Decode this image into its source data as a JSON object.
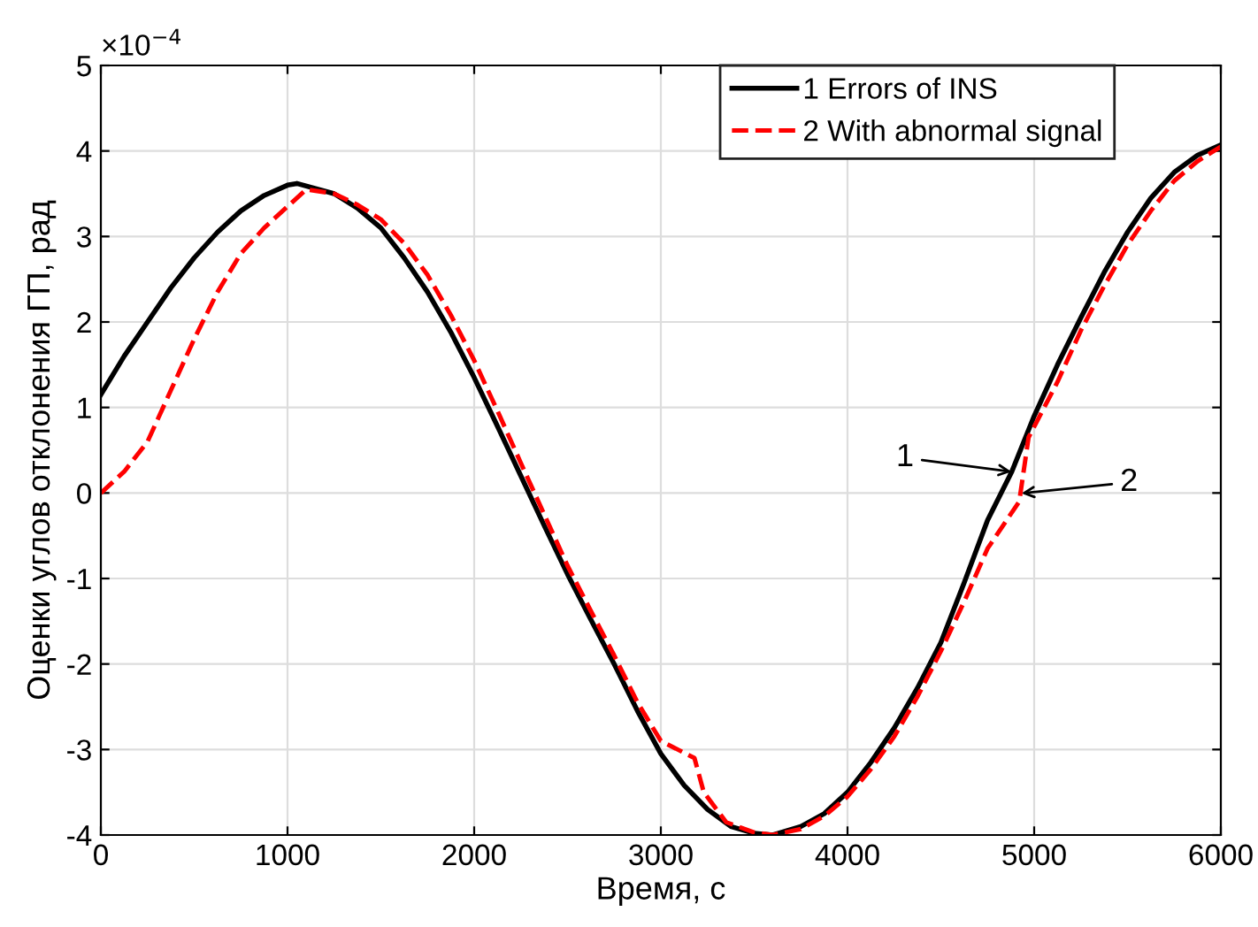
{
  "chart_data": {
    "type": "line",
    "xlabel": "Время, с",
    "ylabel": "Оценки углов отклонения ГП, рад",
    "xlim": [
      0,
      6000
    ],
    "xticks": [
      0,
      1000,
      2000,
      3000,
      4000,
      5000,
      6000
    ],
    "ylim": [
      -4,
      5
    ],
    "yticks": [
      -4,
      -3,
      -2,
      -1,
      0,
      1,
      2,
      3,
      4,
      5
    ],
    "grid": true,
    "legend": "top right",
    "marker": "none",
    "series": [
      {
        "name": "1 Errors of INS",
        "color": "#000000",
        "line_style": "solid",
        "x": [
          0,
          125,
          250,
          375,
          500,
          625,
          750,
          875,
          1000,
          1050,
          1250,
          1375,
          1500,
          1625,
          1750,
          1875,
          2000,
          2125,
          2250,
          2375,
          2500,
          2625,
          2750,
          2875,
          3000,
          3125,
          3250,
          3375,
          3500,
          3600,
          3750,
          3875,
          4000,
          4125,
          4250,
          4375,
          4500,
          4625,
          4750,
          4880,
          5000,
          5125,
          5250,
          5375,
          5500,
          5625,
          5750,
          5875,
          6000
        ],
        "values": [
          1.15,
          1.6,
          2.0,
          2.4,
          2.75,
          3.05,
          3.3,
          3.48,
          3.6,
          3.62,
          3.5,
          3.33,
          3.1,
          2.75,
          2.35,
          1.88,
          1.35,
          0.78,
          0.2,
          -0.38,
          -0.95,
          -1.48,
          -2.0,
          -2.55,
          -3.05,
          -3.42,
          -3.7,
          -3.9,
          -3.98,
          -4.0,
          -3.9,
          -3.75,
          -3.5,
          -3.15,
          -2.75,
          -2.28,
          -1.75,
          -1.05,
          -0.32,
          0.25,
          0.9,
          1.5,
          2.05,
          2.58,
          3.05,
          3.45,
          3.75,
          3.95,
          4.07
        ]
      },
      {
        "name": "2 With abnormal signal",
        "color": "#ff0000",
        "line_style": "dashed",
        "x": [
          0,
          125,
          250,
          375,
          500,
          625,
          750,
          875,
          1000,
          1100,
          1250,
          1375,
          1500,
          1625,
          1750,
          1875,
          2000,
          2125,
          2250,
          2375,
          2500,
          2625,
          2750,
          2875,
          3000,
          3180,
          3230,
          3350,
          3500,
          3600,
          3750,
          3875,
          4000,
          4125,
          4250,
          4375,
          4500,
          4625,
          4750,
          4920,
          4970,
          5125,
          5250,
          5375,
          5500,
          5625,
          5750,
          5875,
          6000
        ],
        "values": [
          0,
          0.25,
          0.6,
          1.2,
          1.8,
          2.35,
          2.8,
          3.1,
          3.35,
          3.55,
          3.5,
          3.37,
          3.2,
          2.92,
          2.55,
          2.08,
          1.55,
          0.96,
          0.35,
          -0.25,
          -0.85,
          -1.38,
          -1.9,
          -2.45,
          -2.9,
          -3.1,
          -3.5,
          -3.85,
          -3.97,
          -4.0,
          -3.93,
          -3.78,
          -3.55,
          -3.23,
          -2.85,
          -2.38,
          -1.85,
          -1.27,
          -0.65,
          -0.1,
          0.65,
          1.3,
          1.9,
          2.42,
          2.9,
          3.3,
          3.65,
          3.88,
          4.05
        ]
      }
    ],
    "annotations": [
      "×10$^{−4}$",
      "1",
      "2"
    ]
  }
}
